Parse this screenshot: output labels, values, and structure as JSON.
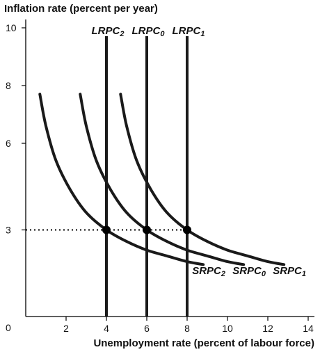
{
  "chart_data": {
    "type": "line",
    "ylabel": "Inflation rate (percent per year)",
    "xlabel": "Unemployment rate (percent of labour force)",
    "origin_label": "0",
    "x_ticks": [
      "2",
      "4",
      "6",
      "8",
      "10",
      "12",
      "14"
    ],
    "y_ticks": [
      "3",
      "6",
      "8",
      "10"
    ],
    "xlim": [
      0,
      14
    ],
    "ylim": [
      0,
      10
    ],
    "series": [
      {
        "name": "LRPC",
        "sub": "2",
        "kind": "vertical",
        "x": 4
      },
      {
        "name": "LRPC",
        "sub": "0",
        "kind": "vertical",
        "x": 6
      },
      {
        "name": "LRPC",
        "sub": "1",
        "kind": "vertical",
        "x": 8
      },
      {
        "name": "SRPC",
        "sub": "2",
        "kind": "curve",
        "points": [
          [
            0.7,
            7.7
          ],
          [
            1.0,
            6.6
          ],
          [
            1.5,
            5.4
          ],
          [
            2.2,
            4.4
          ],
          [
            3.0,
            3.6
          ],
          [
            4.0,
            3.0
          ],
          [
            5.0,
            2.6
          ],
          [
            6.0,
            2.3
          ],
          [
            7.0,
            2.1
          ],
          [
            8.0,
            1.9
          ],
          [
            8.8,
            1.8
          ]
        ]
      },
      {
        "name": "SRPC",
        "sub": "0",
        "kind": "curve",
        "points": [
          [
            2.7,
            7.7
          ],
          [
            3.0,
            6.6
          ],
          [
            3.5,
            5.4
          ],
          [
            4.2,
            4.4
          ],
          [
            5.0,
            3.6
          ],
          [
            6.0,
            3.0
          ],
          [
            7.0,
            2.6
          ],
          [
            8.0,
            2.3
          ],
          [
            9.0,
            2.1
          ],
          [
            10.0,
            1.9
          ],
          [
            10.8,
            1.8
          ]
        ]
      },
      {
        "name": "SRPC",
        "sub": "1",
        "kind": "curve",
        "points": [
          [
            4.7,
            7.7
          ],
          [
            5.0,
            6.6
          ],
          [
            5.5,
            5.4
          ],
          [
            6.2,
            4.4
          ],
          [
            7.0,
            3.6
          ],
          [
            8.0,
            3.0
          ],
          [
            9.0,
            2.6
          ],
          [
            10.0,
            2.3
          ],
          [
            11.0,
            2.1
          ],
          [
            12.0,
            1.9
          ],
          [
            12.8,
            1.8
          ]
        ]
      }
    ],
    "points": [
      [
        4,
        3
      ],
      [
        6,
        3
      ],
      [
        8,
        3
      ]
    ],
    "reference_line": {
      "y": 3,
      "style": "dotted"
    },
    "grid": false
  }
}
